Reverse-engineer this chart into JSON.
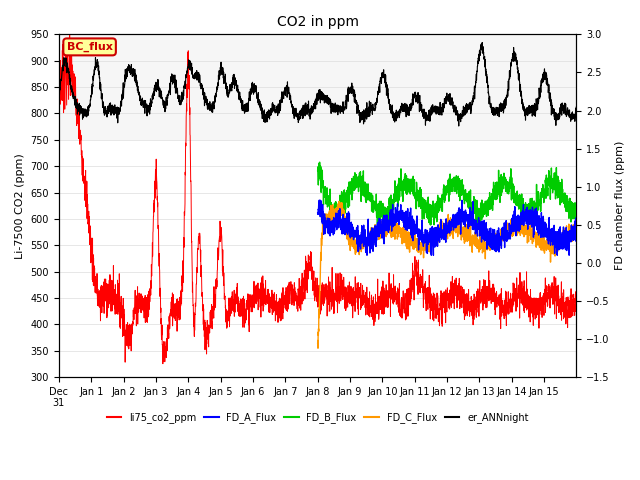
{
  "title": "CO2 in ppm",
  "ylabel_left": "Li-7500 CO2 (ppm)",
  "ylabel_right": "FD chamber flux (ppm)",
  "ylim_left": [
    300,
    950
  ],
  "ylim_right": [
    -1.5,
    3.0
  ],
  "yticks_left": [
    300,
    350,
    400,
    450,
    500,
    550,
    600,
    650,
    700,
    750,
    800,
    850,
    900,
    950
  ],
  "yticks_right": [
    -1.5,
    -1.0,
    -0.5,
    0.0,
    0.5,
    1.0,
    1.5,
    2.0,
    2.5,
    3.0
  ],
  "colors": {
    "li75": "#ff0000",
    "FD_A": "#0000ff",
    "FD_B": "#00cc00",
    "FD_C": "#ff9900",
    "er_ANN": "#000000"
  },
  "legend_labels": [
    "li75_co2_ppm",
    "FD_A_Flux",
    "FD_B_Flux",
    "FD_C_Flux",
    "er_ANNnight"
  ],
  "bc_flux_label": "BC_flux",
  "bc_flux_color": "#cc0000",
  "bc_flux_bg": "#ffff99",
  "background_color": "#ffffff",
  "grid_color": "#dddddd",
  "x_tick_hours": [
    0,
    24,
    48,
    72,
    96,
    120,
    144,
    168,
    192,
    216,
    240,
    264,
    288,
    312,
    336,
    360
  ],
  "x_tick_labels": [
    "Dec\n31",
    "Jan 1",
    "Jan 2",
    "Jan 3",
    "Jan 4",
    "Jan 5",
    "Jan 6",
    "Jan 7",
    "Jan 8",
    "Jan 9",
    "Jan 10",
    "Jan 11",
    "Jan 12",
    "Jan 13",
    "Jan 14",
    "Jan 15"
  ]
}
